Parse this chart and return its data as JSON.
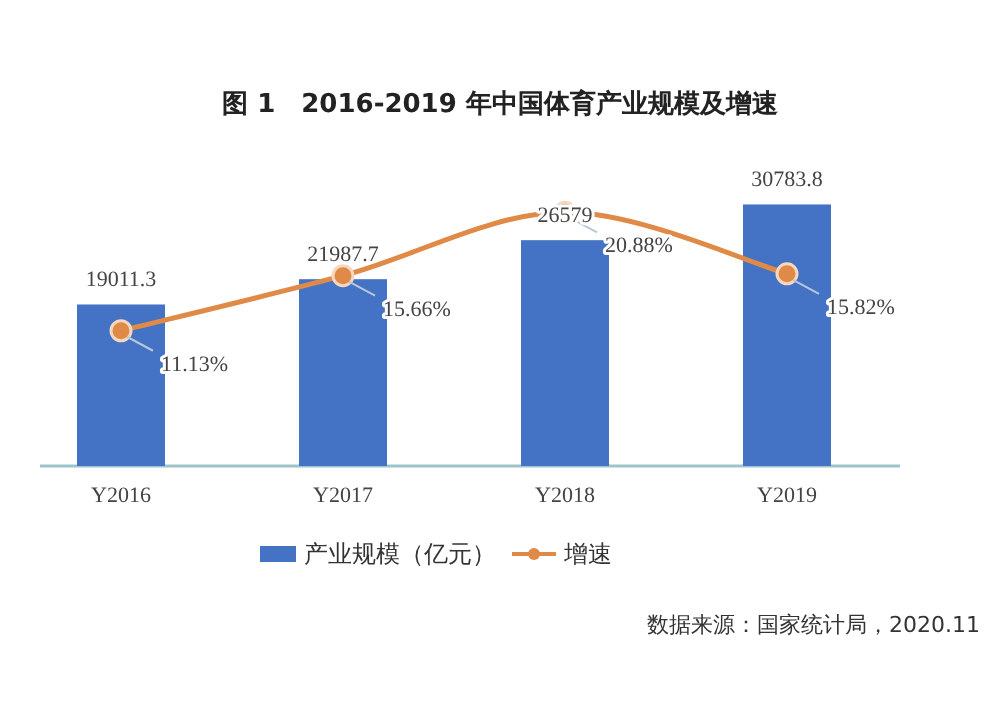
{
  "chart_data": {
    "type": "bar",
    "title": "图 1　2016-2019 年中国体育产业规模及增速",
    "categories": [
      "Y2016",
      "Y2017",
      "Y2018",
      "Y2019"
    ],
    "series": [
      {
        "name": "产业规模（亿元）",
        "color": "#4472c4",
        "values": [
          19011.3,
          21987.7,
          26579,
          30783.8
        ],
        "value_labels": [
          "19011.3",
          "21987.7",
          "26579",
          "30783.8"
        ]
      },
      {
        "name": "增速",
        "type": "line",
        "axis": "y2",
        "color": "#e08a47",
        "values": [
          11.13,
          15.66,
          20.88,
          15.82
        ],
        "value_labels": [
          "11.13%",
          "15.66%",
          "20.88%",
          "15.82%"
        ]
      }
    ],
    "tick_labels": "x",
    "legend": "bottom",
    "marker": "circle",
    "annotations": [
      "数据来源：国家统计局，2020.11"
    ]
  }
}
